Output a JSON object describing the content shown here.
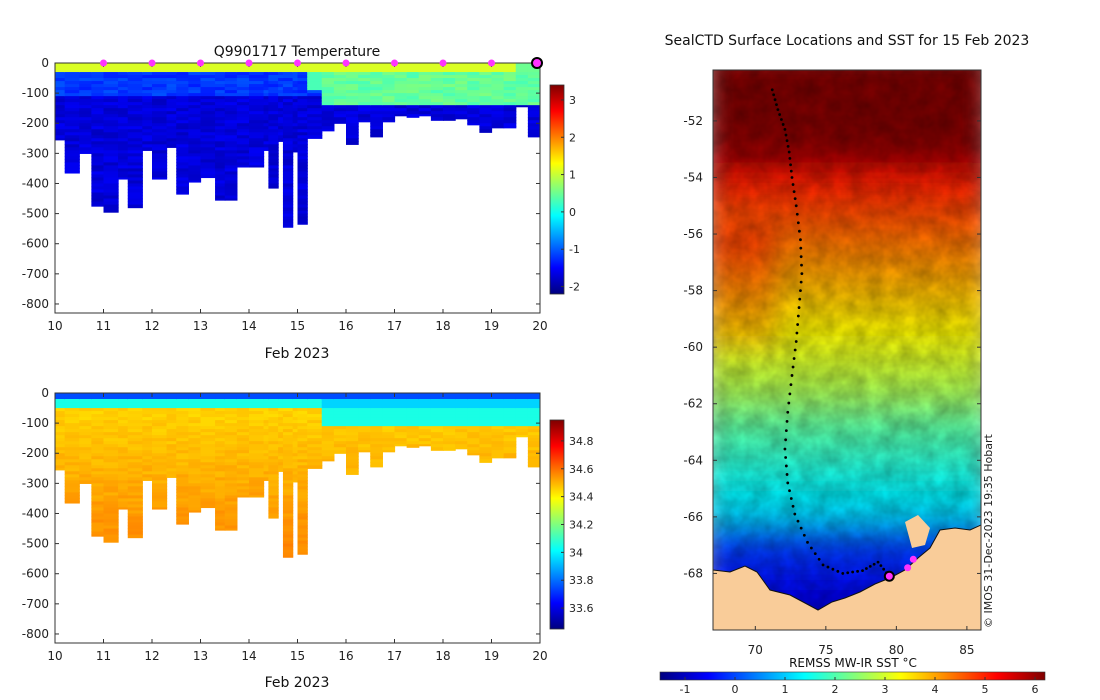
{
  "chart_data": [
    {
      "type": "heatmap",
      "title": "Q9901717  Temperature",
      "xlabel": "Feb 2023",
      "ylabel": "",
      "x_ticks": [
        10,
        11,
        12,
        13,
        14,
        15,
        16,
        17,
        18,
        19,
        20
      ],
      "y_ticks": [
        0,
        -100,
        -200,
        -300,
        -400,
        -500,
        -600,
        -700,
        -800
      ],
      "xlim": [
        10,
        20
      ],
      "ylim": [
        -830,
        0
      ],
      "colorbar": {
        "min": -2.2,
        "max": 3.4,
        "ticks": [
          3,
          2,
          1,
          0,
          -1,
          -2
        ],
        "colors": [
          "#00007f",
          "#0000ff",
          "#00ffff",
          "#7fff7f",
          "#ffff00",
          "#ff0000",
          "#7f0000"
        ]
      },
      "surface_markers_x": [
        11,
        12,
        13,
        14,
        15,
        16,
        17,
        18,
        19
      ],
      "current_marker_x": 20,
      "marker_color": "#ff33ff",
      "profiles": [
        {
          "day": 10.0,
          "depth": 255
        },
        {
          "day": 10.2,
          "depth": 365
        },
        {
          "day": 10.5,
          "depth": 300
        },
        {
          "day": 10.75,
          "depth": 475
        },
        {
          "day": 11.0,
          "depth": 495
        },
        {
          "day": 11.3,
          "depth": 385
        },
        {
          "day": 11.5,
          "depth": 480
        },
        {
          "day": 11.8,
          "depth": 290
        },
        {
          "day": 12.0,
          "depth": 385
        },
        {
          "day": 12.3,
          "depth": 280
        },
        {
          "day": 12.5,
          "depth": 435
        },
        {
          "day": 12.75,
          "depth": 395
        },
        {
          "day": 13.0,
          "depth": 380
        },
        {
          "day": 13.3,
          "depth": 455
        },
        {
          "day": 13.5,
          "depth": 455
        },
        {
          "day": 13.75,
          "depth": 345
        },
        {
          "day": 14.0,
          "depth": 345
        },
        {
          "day": 14.3,
          "depth": 290
        },
        {
          "day": 14.4,
          "depth": 415
        },
        {
          "day": 14.6,
          "depth": 260
        },
        {
          "day": 14.7,
          "depth": 545
        },
        {
          "day": 14.9,
          "depth": 295
        },
        {
          "day": 15.0,
          "depth": 535
        },
        {
          "day": 15.2,
          "depth": 250
        },
        {
          "day": 15.5,
          "depth": 225
        },
        {
          "day": 15.75,
          "depth": 200
        },
        {
          "day": 16.0,
          "depth": 270
        },
        {
          "day": 16.25,
          "depth": 195
        },
        {
          "day": 16.5,
          "depth": 245
        },
        {
          "day": 16.75,
          "depth": 195
        },
        {
          "day": 17.0,
          "depth": 175
        },
        {
          "day": 17.25,
          "depth": 180
        },
        {
          "day": 17.5,
          "depth": 175
        },
        {
          "day": 17.75,
          "depth": 190
        },
        {
          "day": 18.0,
          "depth": 190
        },
        {
          "day": 18.25,
          "depth": 185
        },
        {
          "day": 18.5,
          "depth": 205
        },
        {
          "day": 18.75,
          "depth": 230
        },
        {
          "day": 19.0,
          "depth": 215
        },
        {
          "day": 19.25,
          "depth": 215
        },
        {
          "day": 19.5,
          "depth": 145
        },
        {
          "day": 19.75,
          "depth": 245
        },
        {
          "day": 20.0,
          "depth": 245
        }
      ]
    },
    {
      "type": "heatmap",
      "title": "",
      "xlabel": "Feb 2023",
      "ylabel": "",
      "x_ticks": [
        10,
        11,
        12,
        13,
        14,
        15,
        16,
        17,
        18,
        19,
        20
      ],
      "y_ticks": [
        0,
        -100,
        -200,
        -300,
        -400,
        -500,
        -600,
        -700,
        -800
      ],
      "xlim": [
        10,
        20
      ],
      "ylim": [
        -830,
        0
      ],
      "colorbar": {
        "min": 33.45,
        "max": 34.95,
        "ticks": [
          34.8,
          34.6,
          34.4,
          34.2,
          34,
          33.8,
          33.6
        ],
        "colors": [
          "#00007f",
          "#0000ff",
          "#00ffff",
          "#7fff7f",
          "#ffff00",
          "#ff0000",
          "#7f0000"
        ]
      }
    },
    {
      "type": "heatmap",
      "title": "SealCTD Surface Locations and SST for 15 Feb 2023",
      "xlabel": "",
      "ylabel": "",
      "x_ticks": [
        70,
        75,
        80,
        85
      ],
      "y_ticks": [
        -52,
        -54,
        -56,
        -58,
        -60,
        -62,
        -64,
        -66,
        -68
      ],
      "xlim": [
        67,
        86
      ],
      "ylim": [
        -70,
        -50.2
      ],
      "colorbar": {
        "label": "REMSS MW-IR SST °C",
        "min": -1.5,
        "max": 6.2,
        "ticks": [
          -1,
          0,
          1,
          2,
          3,
          4,
          5,
          6
        ],
        "colors": [
          "#00007f",
          "#0000ff",
          "#00ffff",
          "#7fff7f",
          "#ffff00",
          "#ff0000",
          "#7f0000"
        ]
      },
      "land_color": "#f9cc99",
      "track": [
        [
          71.2,
          -50.9
        ],
        [
          71.6,
          -51.6
        ],
        [
          72.1,
          -52.3
        ],
        [
          72.4,
          -53.1
        ],
        [
          72.6,
          -54.0
        ],
        [
          72.9,
          -55.0
        ],
        [
          73.2,
          -56.2
        ],
        [
          73.3,
          -57.4
        ],
        [
          73.1,
          -58.6
        ],
        [
          72.9,
          -59.8
        ],
        [
          72.6,
          -61.0
        ],
        [
          72.3,
          -62.3
        ],
        [
          72.1,
          -63.6
        ],
        [
          72.3,
          -64.8
        ],
        [
          72.8,
          -65.9
        ],
        [
          73.7,
          -66.9
        ],
        [
          74.8,
          -67.7
        ],
        [
          76.2,
          -68.0
        ],
        [
          77.6,
          -67.9
        ],
        [
          78.7,
          -67.6
        ],
        [
          79.5,
          -68.1
        ]
      ],
      "current_position": [
        79.5,
        -68.1
      ],
      "recent_positions": [
        [
          80.8,
          -67.8
        ],
        [
          81.2,
          -67.5
        ]
      ],
      "watermark": "© IMOS 31-Dec-2023 19:35 Hobart"
    }
  ]
}
